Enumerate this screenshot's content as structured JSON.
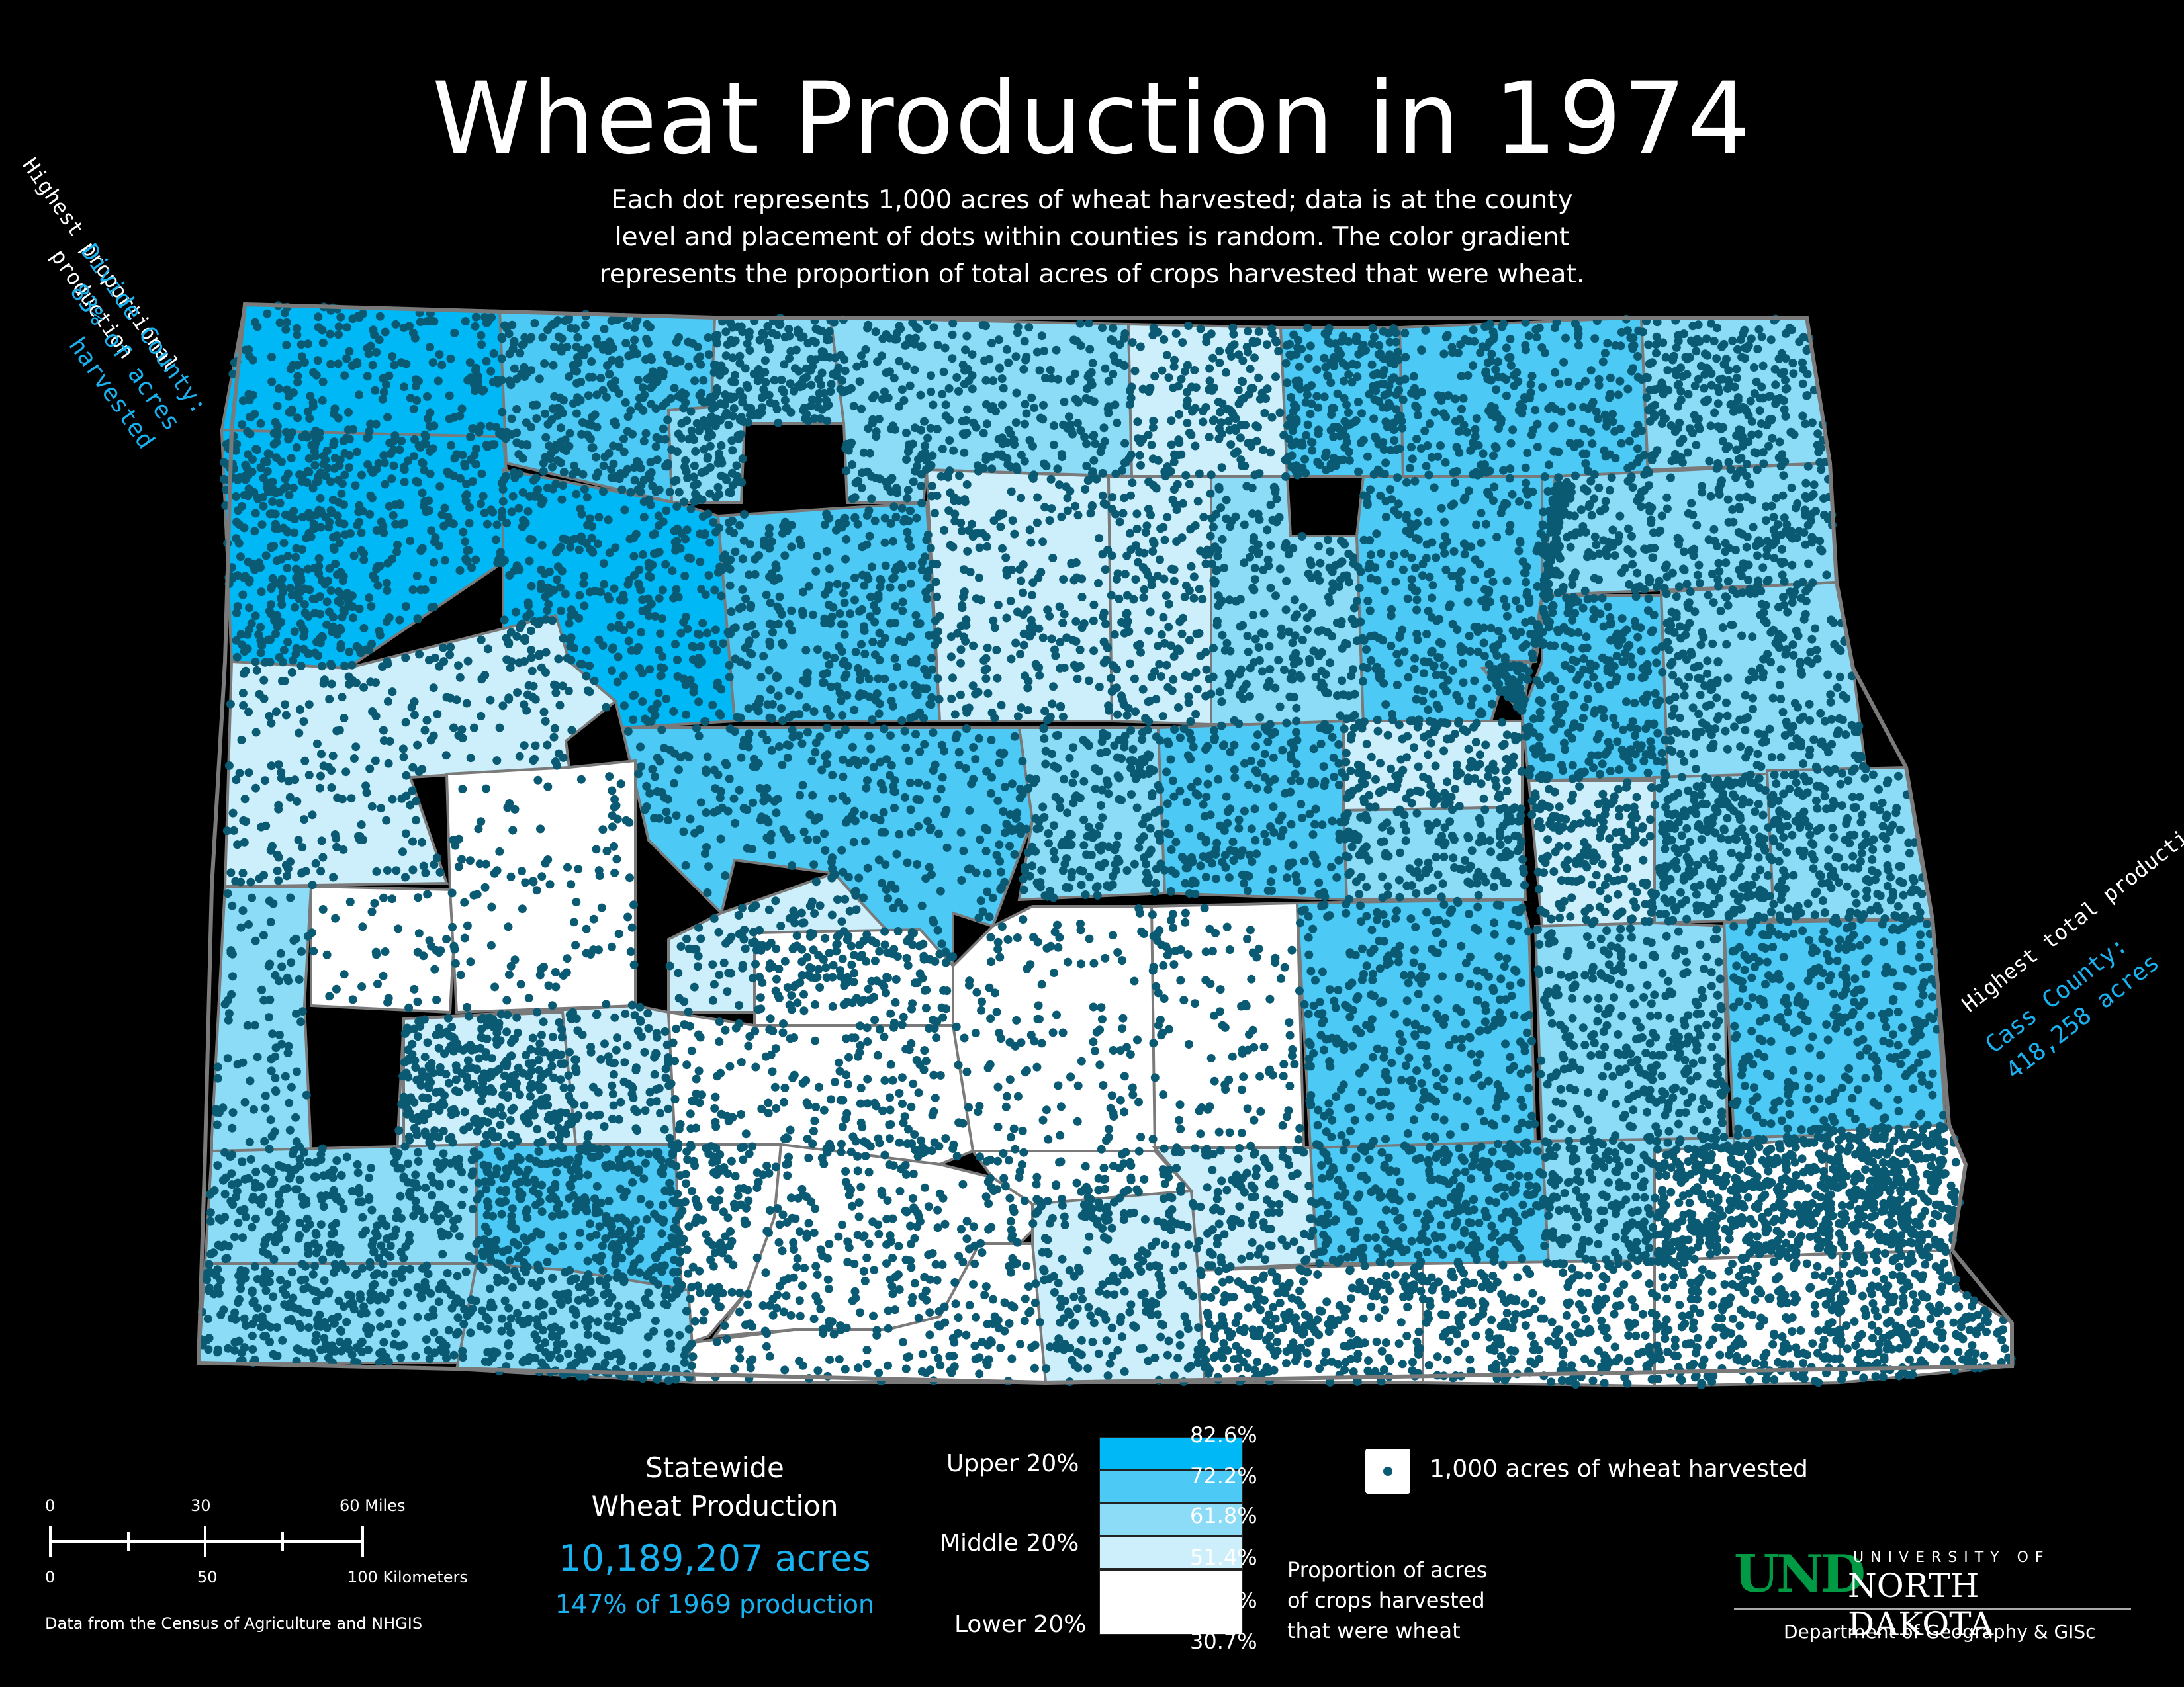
{
  "title": "Wheat Production in 1974",
  "subtitle_lines": [
    "Each dot represents 1,000 acres of wheat harvested; data is at the county",
    "level and placement of dots within counties is random. The color gradient",
    "represents the proportion of total acres of crops harvested that were wheat."
  ],
  "annotation_highest_proportional": {
    "lines": [
      "Highest proportional",
      "production"
    ],
    "county_lines": [
      "Divide County:",
      "83% of acres",
      "harvested"
    ]
  },
  "annotation_highest_total": {
    "lines": [
      "Highest total production"
    ],
    "county_lines": [
      "Cass County:",
      "418,258 acres"
    ]
  },
  "statewide": {
    "heading_lines": [
      "Statewide",
      "Wheat Production"
    ],
    "total": "10,189,207 acres",
    "comparison": "147% of 1969 production"
  },
  "legend": {
    "group_labels": [
      "Upper 20%",
      "Middle 20%",
      "Lower 20%"
    ],
    "breaks": [
      "82.6%",
      "72.2%",
      "61.8%",
      "51.4%",
      "41.1%",
      "30.7%"
    ],
    "colors": [
      "#00b8f5",
      "#4cc9f5",
      "#8ddcf7",
      "#cdeffb",
      "#ffffff"
    ],
    "caption_lines": [
      "Proportion of acres",
      "of crops harvested",
      "that were wheat"
    ],
    "dot_label": "1,000 acres of wheat harvested",
    "dot_color": "#0b5a73"
  },
  "scale_bar": {
    "miles_ticks": [
      "0",
      "30",
      "60 Miles"
    ],
    "km_ticks": [
      "0",
      "50",
      "100 Kilometers"
    ]
  },
  "source": "Data from the Census of Agriculture and NHGIS",
  "logo": {
    "und": "UND",
    "university_of": "UNIVERSITY OF",
    "name": "NORTH DAKOTA",
    "department": "Department of Geography & GISc"
  },
  "map_colors": {
    "border": "#7a7a7a"
  }
}
